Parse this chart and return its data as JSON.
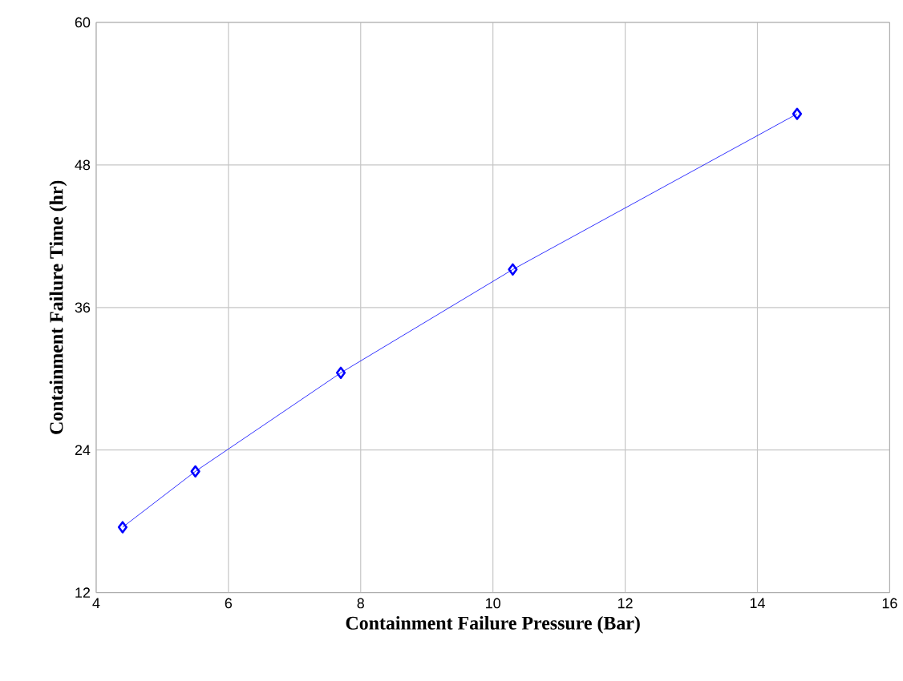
{
  "chart_data": {
    "type": "line",
    "xlabel": "Containment Failure Pressure (Bar)",
    "ylabel": "Containment Failure Time (hr)",
    "x": [
      4.4,
      5.5,
      7.7,
      10.3,
      14.6
    ],
    "series": [
      {
        "color": "#0000ff",
        "values": [
          17.5,
          22.2,
          30.5,
          39.2,
          52.3
        ]
      }
    ],
    "xlim": [
      4,
      16
    ],
    "xticks": [
      4,
      6,
      8,
      10,
      12,
      14,
      16
    ],
    "ylim": [
      12,
      60
    ],
    "yticks": [
      12,
      24,
      36,
      48,
      60
    ],
    "grid": true,
    "marker": "diamond",
    "line_style": "solid"
  }
}
